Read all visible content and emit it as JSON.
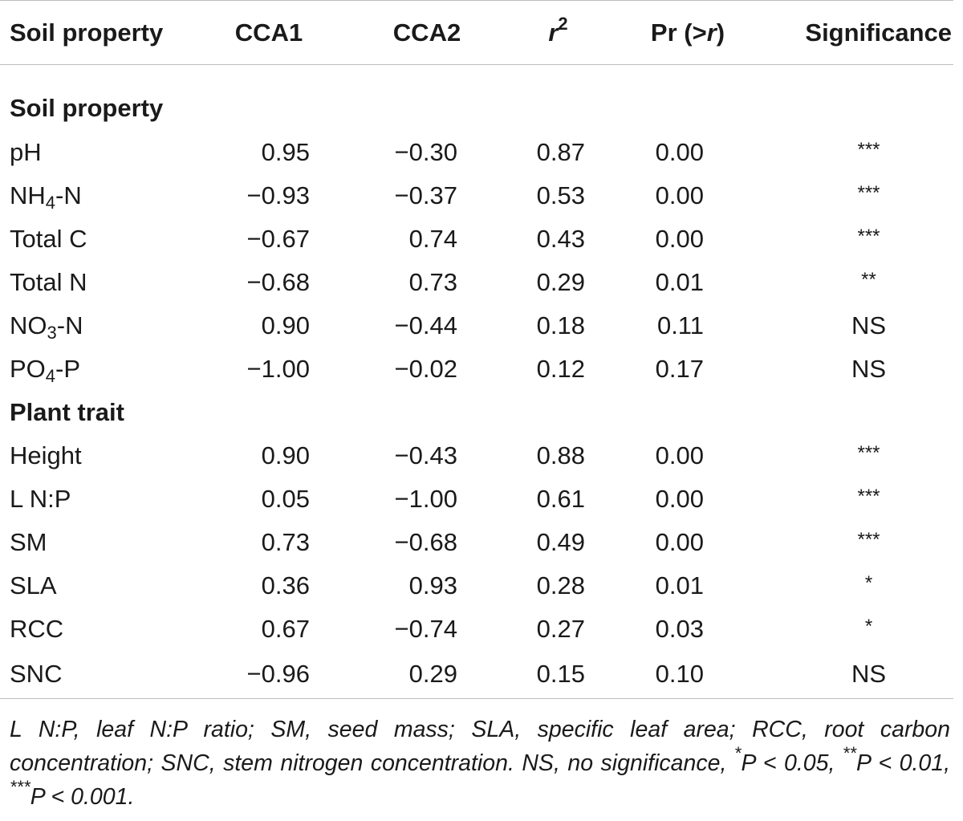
{
  "table": {
    "headers": {
      "soil_property": "Soil property",
      "cca1": "CCA1",
      "cca2": "CCA2",
      "r2_base": "r",
      "r2_sup": "2",
      "pr_prefix": "Pr (>",
      "pr_var": "r",
      "pr_suffix": ")",
      "significance": "Significance"
    },
    "sections": [
      {
        "title": "Soil property",
        "rows": [
          {
            "label_main": "pH",
            "label_sub": "",
            "label_tail": "",
            "cca1": "0.95",
            "cca2": "−0.30",
            "r2": "0.87",
            "pr": "0.00",
            "sig": "***"
          },
          {
            "label_main": "NH",
            "label_sub": "4",
            "label_tail": "-N",
            "cca1": "−0.93",
            "cca2": "−0.37",
            "r2": "0.53",
            "pr": "0.00",
            "sig": "***"
          },
          {
            "label_main": "Total C",
            "label_sub": "",
            "label_tail": "",
            "cca1": "−0.67",
            "cca2": "0.74",
            "r2": "0.43",
            "pr": "0.00",
            "sig": "***"
          },
          {
            "label_main": "Total N",
            "label_sub": "",
            "label_tail": "",
            "cca1": "−0.68",
            "cca2": "0.73",
            "r2": "0.29",
            "pr": "0.01",
            "sig": "**"
          },
          {
            "label_main": "NO",
            "label_sub": "3",
            "label_tail": "-N",
            "cca1": "0.90",
            "cca2": "−0.44",
            "r2": "0.18",
            "pr": "0.11",
            "sig": "NS"
          },
          {
            "label_main": "PO",
            "label_sub": "4",
            "label_tail": "-P",
            "cca1": "−1.00",
            "cca2": "−0.02",
            "r2": "0.12",
            "pr": "0.17",
            "sig": "NS"
          }
        ]
      },
      {
        "title": "Plant trait",
        "rows": [
          {
            "label_main": "Height",
            "label_sub": "",
            "label_tail": "",
            "cca1": "0.90",
            "cca2": "−0.43",
            "r2": "0.88",
            "pr": "0.00",
            "sig": "***"
          },
          {
            "label_main": "L N:P",
            "label_sub": "",
            "label_tail": "",
            "cca1": "0.05",
            "cca2": "−1.00",
            "r2": "0.61",
            "pr": "0.00",
            "sig": "***"
          },
          {
            "label_main": "SM",
            "label_sub": "",
            "label_tail": "",
            "cca1": "0.73",
            "cca2": "−0.68",
            "r2": "0.49",
            "pr": "0.00",
            "sig": "***"
          },
          {
            "label_main": "SLA",
            "label_sub": "",
            "label_tail": "",
            "cca1": "0.36",
            "cca2": "0.93",
            "r2": "0.28",
            "pr": "0.01",
            "sig": "*"
          },
          {
            "label_main": "RCC",
            "label_sub": "",
            "label_tail": "",
            "cca1": "0.67",
            "cca2": "−0.74",
            "r2": "0.27",
            "pr": "0.03",
            "sig": "*"
          },
          {
            "label_main": "SNC",
            "label_sub": "",
            "label_tail": "",
            "cca1": "−0.96",
            "cca2": "0.29",
            "r2": "0.15",
            "pr": "0.10",
            "sig": "NS"
          }
        ]
      }
    ]
  },
  "footnote": {
    "text_1": "L N:P, leaf N:P ratio; SM, seed mass; SLA, specific leaf area; RCC, root carbon concentration; SNC, stem nitrogen concentration. NS, no significance, ",
    "star1": "*",
    "p1": "P < 0.05, ",
    "star2": "**",
    "p2": "P < 0.01, ",
    "star3": "***",
    "p3": "P < 0.001."
  }
}
